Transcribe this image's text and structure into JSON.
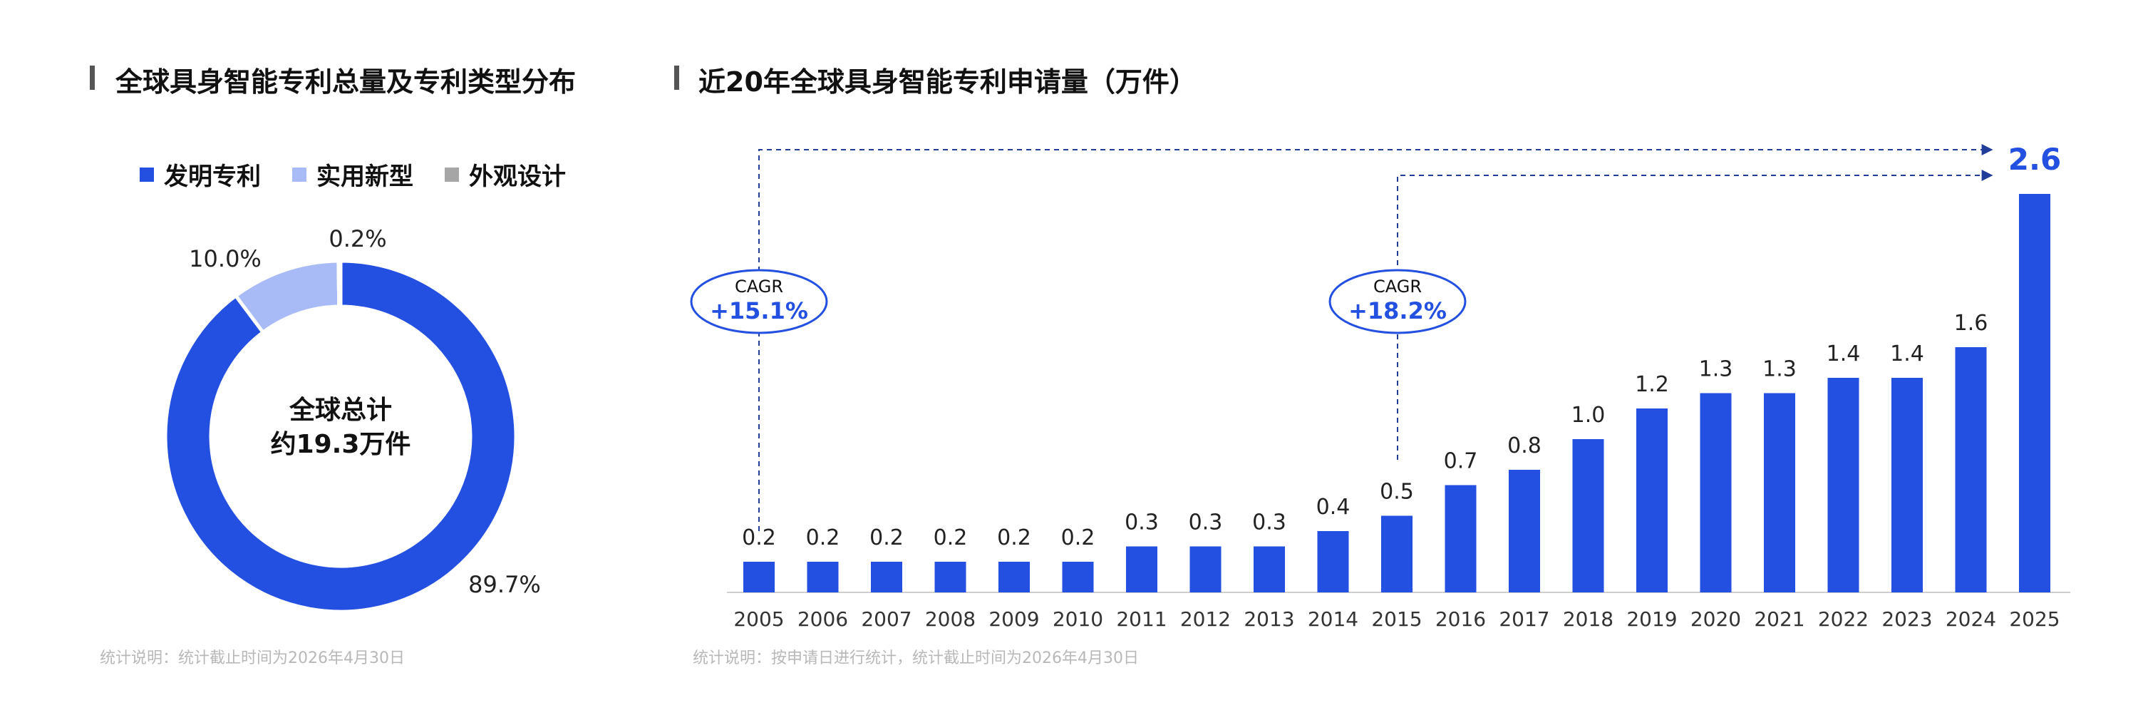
{
  "left_panel": {
    "title": "全球具身智能专利总量及专利类型分布",
    "center_line1": "全球总计",
    "center_line2": "约19.3万件",
    "note": "统计说明：统计截止时间为2026年4月30日"
  },
  "right_panel": {
    "title": "近20年全球具身智能专利申请量（万件）",
    "note": "统计说明：按申请日进行统计，统计截止时间为2026年4月30日",
    "cagr_1": {
      "label": "CAGR",
      "value": "+15.1%"
    },
    "cagr_2": {
      "label": "CAGR",
      "value": "+18.2%"
    }
  },
  "colors": {
    "primary": "#2350e0",
    "light": "#a8bbf7",
    "gray": "#a6a6a6",
    "annotation": "#1f3d99"
  },
  "chart_data": [
    {
      "type": "pie",
      "title": "全球具身智能专利总量及专利类型分布",
      "categories": [
        "发明专利",
        "实用新型",
        "外观设计"
      ],
      "values": [
        89.7,
        10.0,
        0.2
      ],
      "value_labels": [
        "89.7%",
        "10.0%",
        "0.2%"
      ],
      "legend": "top"
    },
    {
      "type": "bar",
      "title": "近20年全球具身智能专利申请量（万件）",
      "categories": [
        "2005",
        "2006",
        "2007",
        "2008",
        "2009",
        "2010",
        "2011",
        "2012",
        "2013",
        "2014",
        "2015",
        "2016",
        "2017",
        "2018",
        "2019",
        "2020",
        "2021",
        "2022",
        "2023",
        "2024",
        "2025"
      ],
      "values": [
        0.2,
        0.2,
        0.2,
        0.2,
        0.2,
        0.2,
        0.3,
        0.3,
        0.3,
        0.4,
        0.5,
        0.7,
        0.8,
        1.0,
        1.2,
        1.3,
        1.3,
        1.4,
        1.4,
        1.6,
        2.6
      ],
      "data_labels": [
        "0.2",
        "0.2",
        "0.2",
        "0.2",
        "0.2",
        "0.2",
        "0.3",
        "0.3",
        "0.3",
        "0.4",
        "0.5",
        "0.7",
        "0.8",
        "1.0",
        "1.2",
        "1.3",
        "1.3",
        "1.4",
        "1.4",
        "1.6",
        "2.6"
      ],
      "grid": false
    }
  ]
}
